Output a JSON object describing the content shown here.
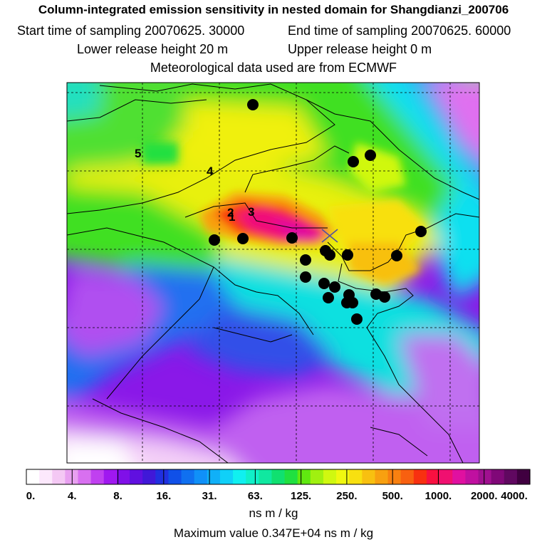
{
  "header": {
    "title": "Column-integrated emission sensitivity in nested domain for Shangdianzi_200706",
    "start_sampling": "Start time of sampling 20070625. 30000",
    "end_sampling": "End time of sampling 20070625. 60000",
    "lower_release": "Lower release height   20 m",
    "upper_release": "Upper release height    0 m",
    "met_data": "Meteorological data used are from ECMWF"
  },
  "map": {
    "source_marker": "receptor-x-marker",
    "numeric_labels": [
      "5",
      "4",
      "2",
      "1",
      "3"
    ]
  },
  "colorbar": {
    "ticks": [
      "0.",
      "4.",
      "8.",
      "16.",
      "31.",
      "63.",
      "125.",
      "250.",
      "500.",
      "1000.",
      "2000.",
      "4000."
    ],
    "units": "ns m / kg",
    "colors": [
      "#ffffff",
      "#fce8fc",
      "#f4c8f4",
      "#e8a0f0",
      "#d870f0",
      "#c040f0",
      "#a018f0",
      "#8010e8",
      "#6010e0",
      "#4018d8",
      "#2030e0",
      "#1050e8",
      "#1070f0",
      "#1090f8",
      "#10b0f8",
      "#10d0f8",
      "#10f0f0",
      "#10f0c8",
      "#10e8a0",
      "#10e070",
      "#20e040",
      "#60e810",
      "#a0f010",
      "#d0f810",
      "#f0f810",
      "#f8e010",
      "#f8c010",
      "#f8a010",
      "#f88010",
      "#f86010",
      "#f83010",
      "#f81040",
      "#f01070",
      "#e010a0",
      "#c010a0",
      "#a01090",
      "#800878",
      "#600860",
      "#400040"
    ],
    "max_label": "Maximum value  0.347E+04 ns m / kg"
  }
}
